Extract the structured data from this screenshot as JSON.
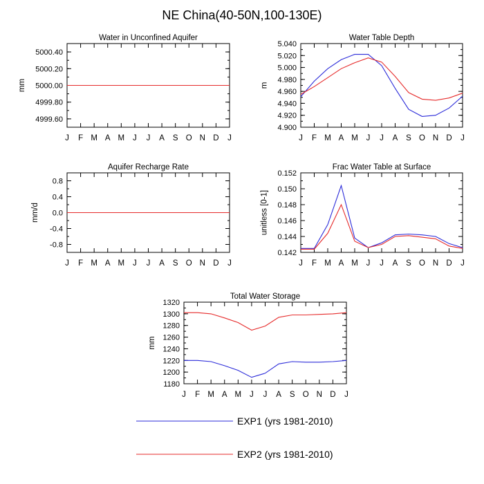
{
  "page": {
    "title": "NE China(40-50N,100-130E)"
  },
  "legend": {
    "items": [
      {
        "label": "EXP1 (yrs 1981-2010)",
        "color": "#2b2bd9"
      },
      {
        "label": "EXP2 (yrs 1981-2010)",
        "color": "#e62a2a"
      }
    ]
  },
  "chart_data": [
    {
      "type": "line",
      "title": "Water in Unconfined Aquifer",
      "xlabel": "",
      "ylabel": "mm",
      "categories": [
        "J",
        "F",
        "M",
        "A",
        "M",
        "J",
        "J",
        "A",
        "S",
        "O",
        "N",
        "D",
        "J"
      ],
      "ylim": [
        4999.5,
        5000.5
      ],
      "yticks": [
        4999.6,
        4999.8,
        5000.0,
        5000.2,
        5000.4
      ],
      "ytick_labels": [
        "4999.60",
        "4999.80",
        "5000.00",
        "5000.20",
        "5000.40"
      ],
      "series": [
        {
          "color": "#2b2bd9",
          "values": [
            5000,
            5000,
            5000,
            5000,
            5000,
            5000,
            5000,
            5000,
            5000,
            5000,
            5000,
            5000,
            5000
          ]
        },
        {
          "color": "#e62a2a",
          "values": [
            5000,
            5000,
            5000,
            5000,
            5000,
            5000,
            5000,
            5000,
            5000,
            5000,
            5000,
            5000,
            5000
          ]
        }
      ]
    },
    {
      "type": "line",
      "title": "Water Table Depth",
      "xlabel": "",
      "ylabel": "m",
      "categories": [
        "J",
        "F",
        "M",
        "A",
        "M",
        "J",
        "J",
        "A",
        "S",
        "O",
        "N",
        "D",
        "J"
      ],
      "ylim": [
        4.9,
        5.04
      ],
      "yticks": [
        4.9,
        4.92,
        4.94,
        4.96,
        4.98,
        5.0,
        5.02,
        5.04
      ],
      "ytick_labels": [
        "4.900",
        "4.920",
        "4.940",
        "4.960",
        "4.980",
        "5.000",
        "5.020",
        "5.040"
      ],
      "series": [
        {
          "color": "#2b2bd9",
          "values": [
            4.951,
            4.977,
            4.998,
            5.013,
            5.022,
            5.022,
            5.003,
            4.965,
            4.93,
            4.918,
            4.92,
            4.932,
            4.952
          ]
        },
        {
          "color": "#e62a2a",
          "values": [
            4.955,
            4.968,
            4.983,
            4.998,
            5.008,
            5.016,
            5.009,
            4.985,
            4.958,
            4.947,
            4.945,
            4.949,
            4.957
          ]
        }
      ]
    },
    {
      "type": "line",
      "title": "Aquifer Recharge Rate",
      "xlabel": "",
      "ylabel": "mm/d",
      "categories": [
        "J",
        "F",
        "M",
        "A",
        "M",
        "J",
        "J",
        "A",
        "S",
        "O",
        "N",
        "D",
        "J"
      ],
      "ylim": [
        -1.0,
        1.0
      ],
      "yticks": [
        -0.8,
        -0.4,
        0.0,
        0.4,
        0.8
      ],
      "ytick_labels": [
        "-0.8",
        "-0.4",
        "0.0",
        "0.4",
        "0.8"
      ],
      "series": [
        {
          "color": "#2b2bd9",
          "values": [
            0,
            0,
            0,
            0,
            0,
            0,
            0,
            0,
            0,
            0,
            0,
            0,
            0
          ]
        },
        {
          "color": "#e62a2a",
          "values": [
            0,
            0,
            0,
            0,
            0,
            0,
            0,
            0,
            0,
            0,
            0,
            0,
            0
          ]
        }
      ]
    },
    {
      "type": "line",
      "title": "Frac Water Table at Surface",
      "xlabel": "",
      "ylabel": "unitless [0-1]",
      "categories": [
        "J",
        "F",
        "M",
        "A",
        "M",
        "J",
        "J",
        "A",
        "S",
        "O",
        "N",
        "D",
        "J"
      ],
      "ylim": [
        0.142,
        0.152
      ],
      "yticks": [
        0.142,
        0.144,
        0.146,
        0.148,
        0.15,
        0.152
      ],
      "ytick_labels": [
        "0.142",
        "0.144",
        "0.146",
        "0.148",
        "0.150",
        "0.152"
      ],
      "series": [
        {
          "color": "#2b2bd9",
          "values": [
            0.1425,
            0.1425,
            0.1455,
            0.1504,
            0.1438,
            0.1426,
            0.1432,
            0.1442,
            0.1443,
            0.1442,
            0.144,
            0.1431,
            0.1426
          ]
        },
        {
          "color": "#e62a2a",
          "values": [
            0.1424,
            0.1424,
            0.1444,
            0.148,
            0.1434,
            0.1426,
            0.143,
            0.144,
            0.1441,
            0.1439,
            0.1437,
            0.1428,
            0.1425
          ]
        }
      ]
    },
    {
      "type": "line",
      "title": "Total Water Storage",
      "xlabel": "",
      "ylabel": "mm",
      "categories": [
        "J",
        "F",
        "M",
        "A",
        "M",
        "J",
        "J",
        "A",
        "S",
        "O",
        "N",
        "D",
        "J"
      ],
      "ylim": [
        1180,
        1320
      ],
      "yticks": [
        1180,
        1200,
        1220,
        1240,
        1260,
        1280,
        1300,
        1320
      ],
      "ytick_labels": [
        "1180",
        "1200",
        "1220",
        "1240",
        "1260",
        "1280",
        "1300",
        "1320"
      ],
      "series": [
        {
          "color": "#2b2bd9",
          "values": [
            1220,
            1220,
            1218,
            1211,
            1203,
            1191,
            1198,
            1214,
            1218,
            1217,
            1217,
            1218,
            1220
          ]
        },
        {
          "color": "#e62a2a",
          "values": [
            1302,
            1302,
            1300,
            1293,
            1285,
            1272,
            1279,
            1294,
            1298,
            1298,
            1299,
            1300,
            1302
          ]
        }
      ]
    }
  ]
}
